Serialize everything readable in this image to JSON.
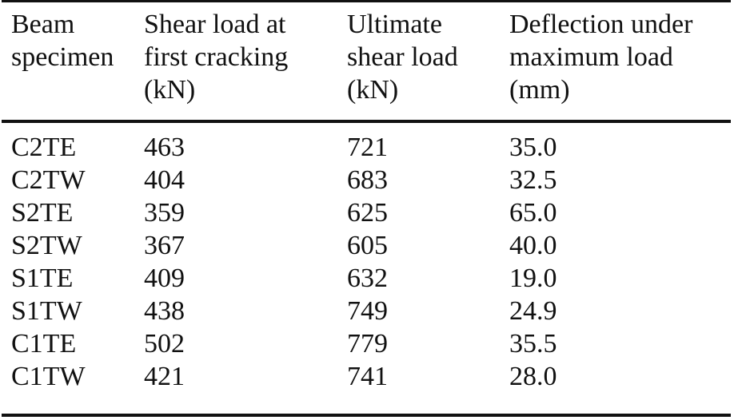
{
  "table": {
    "headers": [
      "Beam\nspecimen",
      "Shear load at\nfirst cracking\n(kN)",
      "Ultimate\nshear load\n(kN)",
      "Deflection under\nmaximum load\n(mm)"
    ],
    "rows": [
      [
        "C2TE",
        "463",
        "721",
        "35.0"
      ],
      [
        "C2TW",
        "404",
        "683",
        "32.5"
      ],
      [
        "S2TE",
        "359",
        "625",
        "65.0"
      ],
      [
        "S2TW",
        "367",
        "605",
        "40.0"
      ],
      [
        "S1TE",
        "409",
        "632",
        "19.0"
      ],
      [
        "S1TW",
        "438",
        "749",
        "24.9"
      ],
      [
        "C1TE",
        "502",
        "779",
        "35.5"
      ],
      [
        "C1TW",
        "421",
        "741",
        "28.0"
      ]
    ]
  }
}
